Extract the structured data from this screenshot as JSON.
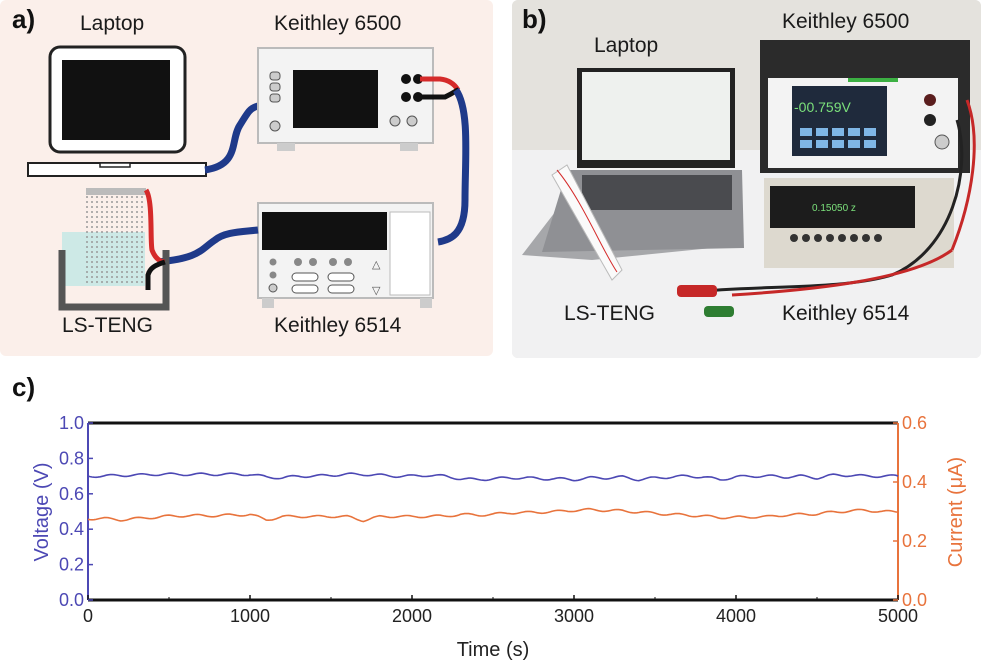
{
  "panel_a": {
    "letter": "a)",
    "labels": {
      "laptop": "Laptop",
      "k6500": "Keithley 6500",
      "teng": "LS-TENG",
      "k6514": "Keithley 6514"
    }
  },
  "panel_b": {
    "letter": "b)",
    "labels": {
      "laptop": "Laptop",
      "k6500": "Keithley 6500",
      "teng": "LS-TENG",
      "k6514": "Keithley 6514"
    },
    "k6500_display": "-00.759V",
    "k6514_display": "0.15050 z"
  },
  "colors": {
    "voltage": "#4c48b4",
    "current": "#e8733c",
    "cable": "#1f3a8a",
    "lead_red": "#d52a2a"
  },
  "chart_data": {
    "letter": "c)",
    "type": "line",
    "xlabel": "Time (s)",
    "ylabel_left": "Voltage (V)",
    "ylabel_right": "Current (μA)",
    "xlim": [
      0,
      5000
    ],
    "ylim_left": [
      0,
      1.0
    ],
    "ylim_right": [
      0,
      0.6
    ],
    "xticks": [
      "0",
      "1000",
      "2000",
      "3000",
      "4000",
      "5000"
    ],
    "yticks_left": [
      "0.0",
      "0.2",
      "0.4",
      "0.6",
      "0.8",
      "1.0"
    ],
    "yticks_right": [
      "0.0",
      "0.2",
      "0.4",
      "0.6"
    ],
    "grid": false,
    "x": [
      0,
      100,
      200,
      300,
      400,
      500,
      600,
      700,
      800,
      900,
      1000,
      1100,
      1200,
      1300,
      1400,
      1500,
      1600,
      1700,
      1800,
      1900,
      2000,
      2100,
      2200,
      2300,
      2400,
      2500,
      2600,
      2700,
      2800,
      2900,
      3000,
      3100,
      3200,
      3300,
      3400,
      3500,
      3600,
      3700,
      3800,
      3900,
      4000,
      4100,
      4200,
      4300,
      4400,
      4500,
      4600,
      4700,
      4800,
      4900,
      5000
    ],
    "series": [
      {
        "axis": "left",
        "values": [
          0.7,
          0.7,
          0.705,
          0.705,
          0.71,
          0.71,
          0.71,
          0.71,
          0.71,
          0.71,
          0.71,
          0.695,
          0.69,
          0.7,
          0.7,
          0.705,
          0.71,
          0.71,
          0.705,
          0.7,
          0.7,
          0.705,
          0.7,
          0.685,
          0.68,
          0.685,
          0.69,
          0.69,
          0.685,
          0.685,
          0.68,
          0.69,
          0.69,
          0.695,
          0.68,
          0.69,
          0.695,
          0.7,
          0.695,
          0.68,
          0.695,
          0.7,
          0.7,
          0.695,
          0.7,
          0.69,
          0.705,
          0.705,
          0.7,
          0.7,
          0.7
        ]
      },
      {
        "axis": "right",
        "values": [
          0.276,
          0.276,
          0.272,
          0.276,
          0.28,
          0.284,
          0.286,
          0.286,
          0.286,
          0.288,
          0.29,
          0.272,
          0.282,
          0.284,
          0.282,
          0.284,
          0.282,
          0.27,
          0.282,
          0.284,
          0.282,
          0.284,
          0.284,
          0.29,
          0.288,
          0.29,
          0.296,
          0.296,
          0.298,
          0.3,
          0.304,
          0.306,
          0.304,
          0.302,
          0.298,
          0.294,
          0.29,
          0.288,
          0.284,
          0.28,
          0.28,
          0.282,
          0.282,
          0.288,
          0.29,
          0.292,
          0.298,
          0.302,
          0.304,
          0.3,
          0.298
        ]
      }
    ]
  }
}
